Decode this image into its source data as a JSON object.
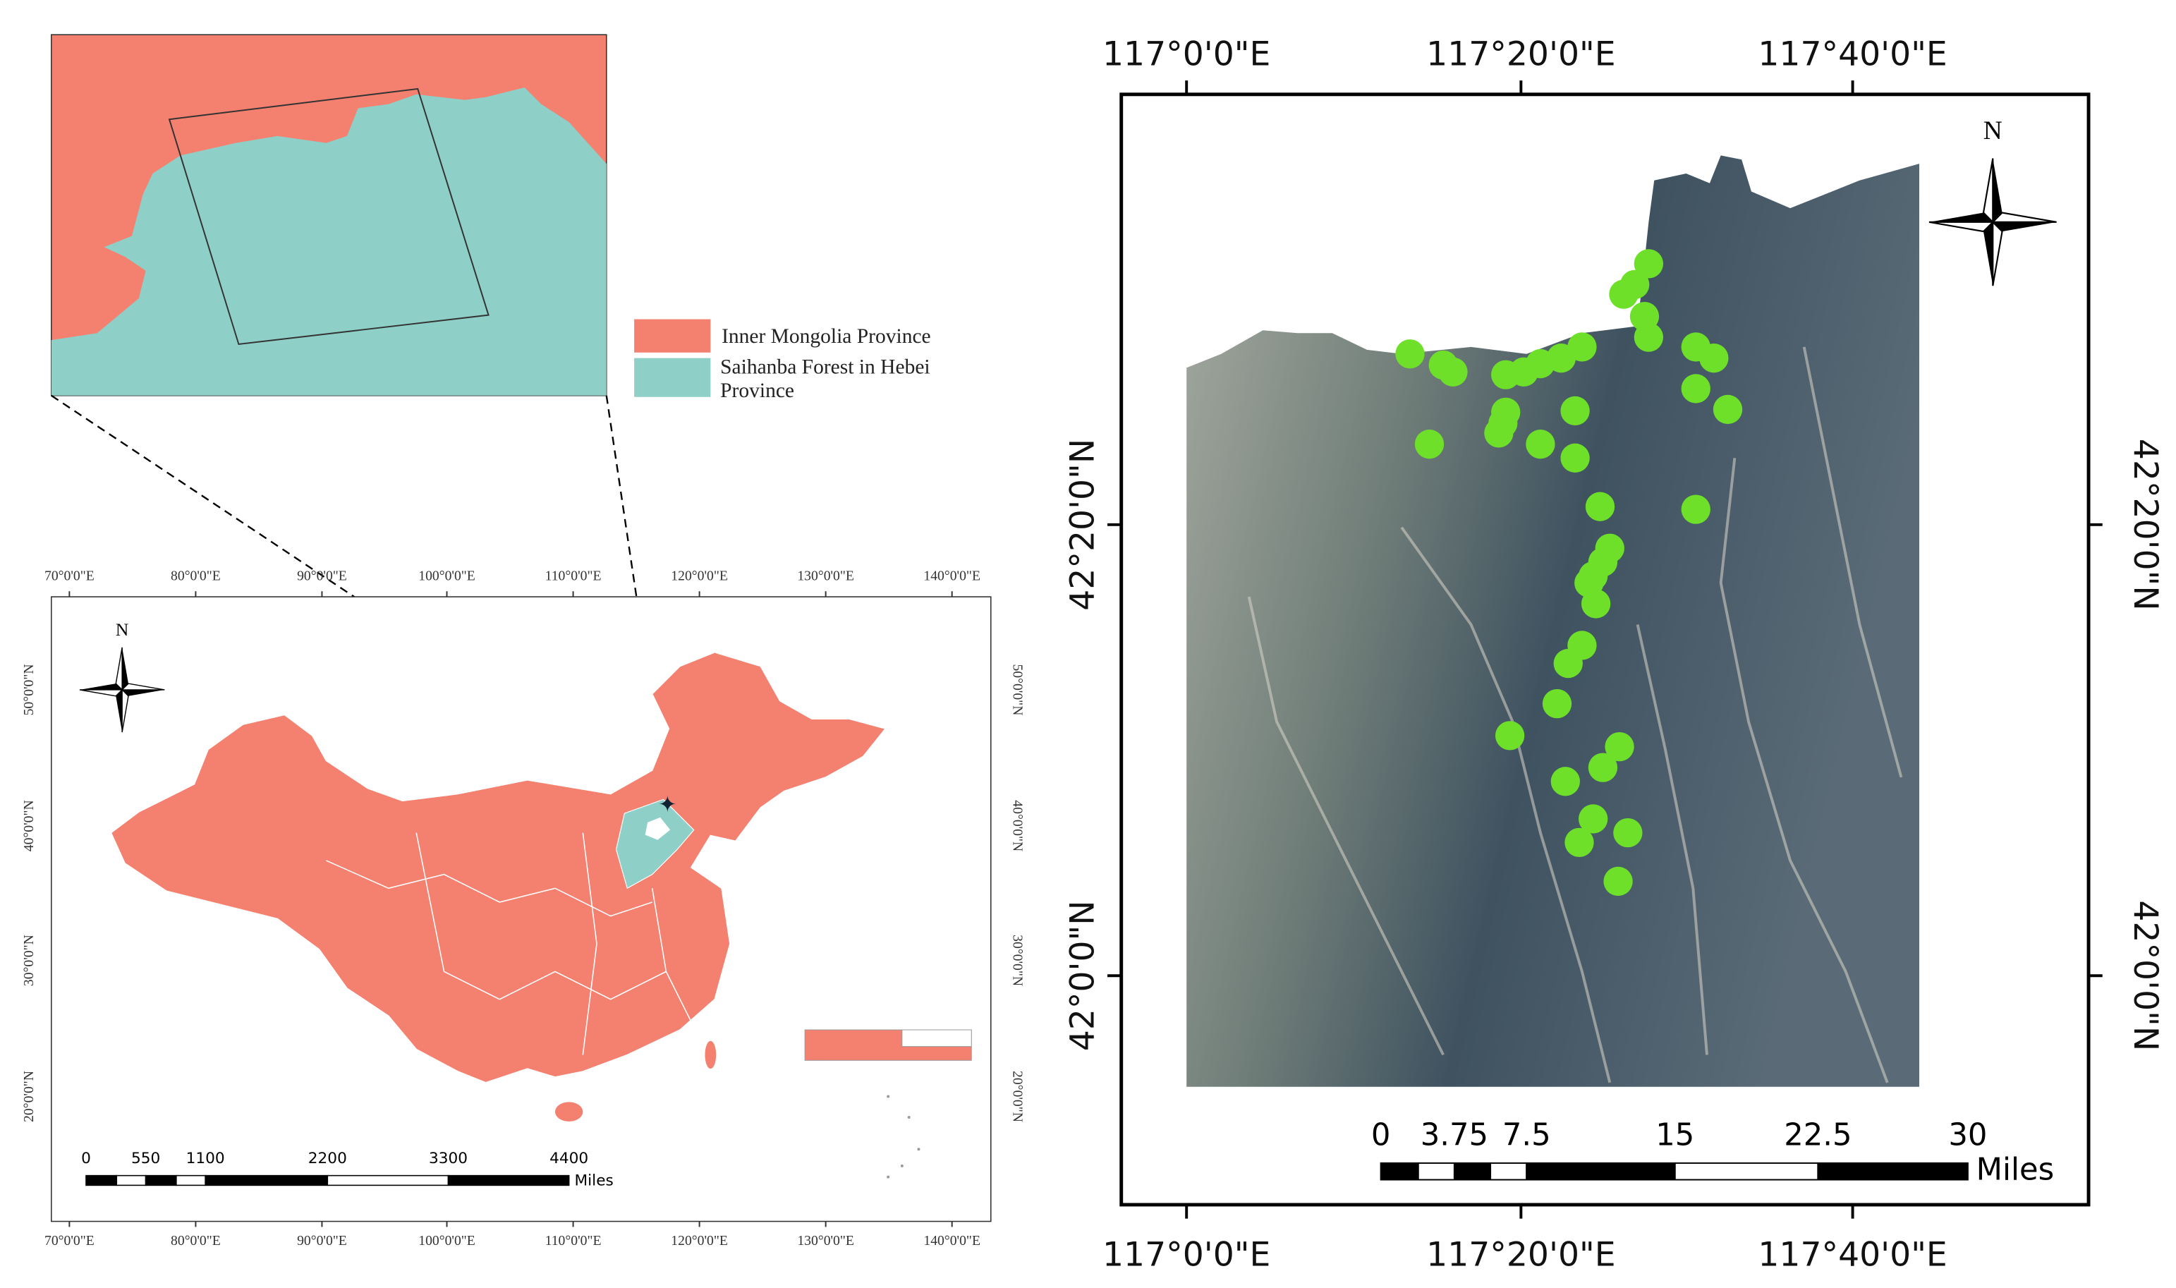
{
  "inset": {
    "legend": [
      "Inner Mongolia Province",
      "Saihanba Forest in Hebei Province"
    ]
  },
  "china_map": {
    "north": "N",
    "lon_labels": [
      "70°0'0\"E",
      "80°0'0\"E",
      "90°0'0\"E",
      "100°0'0\"E",
      "110°0'0\"E",
      "120°0'0\"E",
      "130°0'0\"E",
      "140°0'0\"E"
    ],
    "lat_labels": [
      "20°0'0\"N",
      "30°0'0\"N",
      "40°0'0\"N",
      "50°0'0\"N"
    ],
    "scale_labels": [
      "0",
      "550",
      "1100",
      "2200",
      "3300",
      "4400"
    ],
    "scale_unit": "Miles"
  },
  "study_map": {
    "north": "N",
    "lon_labels": [
      "117°0'0\"E",
      "117°20'0\"E",
      "117°40'0\"E"
    ],
    "lat_labels": [
      "42°0'0\"N",
      "42°20'0\"N"
    ],
    "scale_labels": [
      "0",
      "3.75",
      "7.5",
      "15",
      "22.5",
      "30"
    ],
    "scale_unit": "Miles"
  }
}
